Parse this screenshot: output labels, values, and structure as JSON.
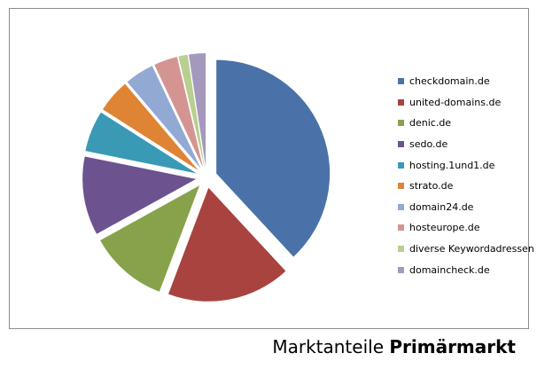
{
  "chart_data": {
    "type": "pie",
    "title": "",
    "legend_position": "right",
    "exploded": true,
    "slices": [
      {
        "label": "checkdomain.de",
        "value": 38.4,
        "color": "#4A72A9"
      },
      {
        "label": "united-domains.de",
        "value": 17.8,
        "color": "#A9433F"
      },
      {
        "label": "denic.de",
        "value": 11.3,
        "color": "#87A24A"
      },
      {
        "label": "sedo.de",
        "value": 11.3,
        "color": "#6D5290"
      },
      {
        "label": "hosting.1und1.de",
        "value": 5.9,
        "color": "#3A9AB5"
      },
      {
        "label": "strato.de",
        "value": 4.8,
        "color": "#DF8434"
      },
      {
        "label": "domain24.de",
        "value": 4.2,
        "color": "#92A9D3"
      },
      {
        "label": "hosteurope.de",
        "value": 3.4,
        "color": "#D49592"
      },
      {
        "label": "diverse Keywordadressen",
        "value": 1.3,
        "color": "#B8CF90"
      },
      {
        "label": "domaincheck.de",
        "value": 2.4,
        "color": "#A498BD"
      }
    ]
  },
  "caption": {
    "prefix": "Marktanteile",
    "emphasis": "Primärmarkt"
  }
}
